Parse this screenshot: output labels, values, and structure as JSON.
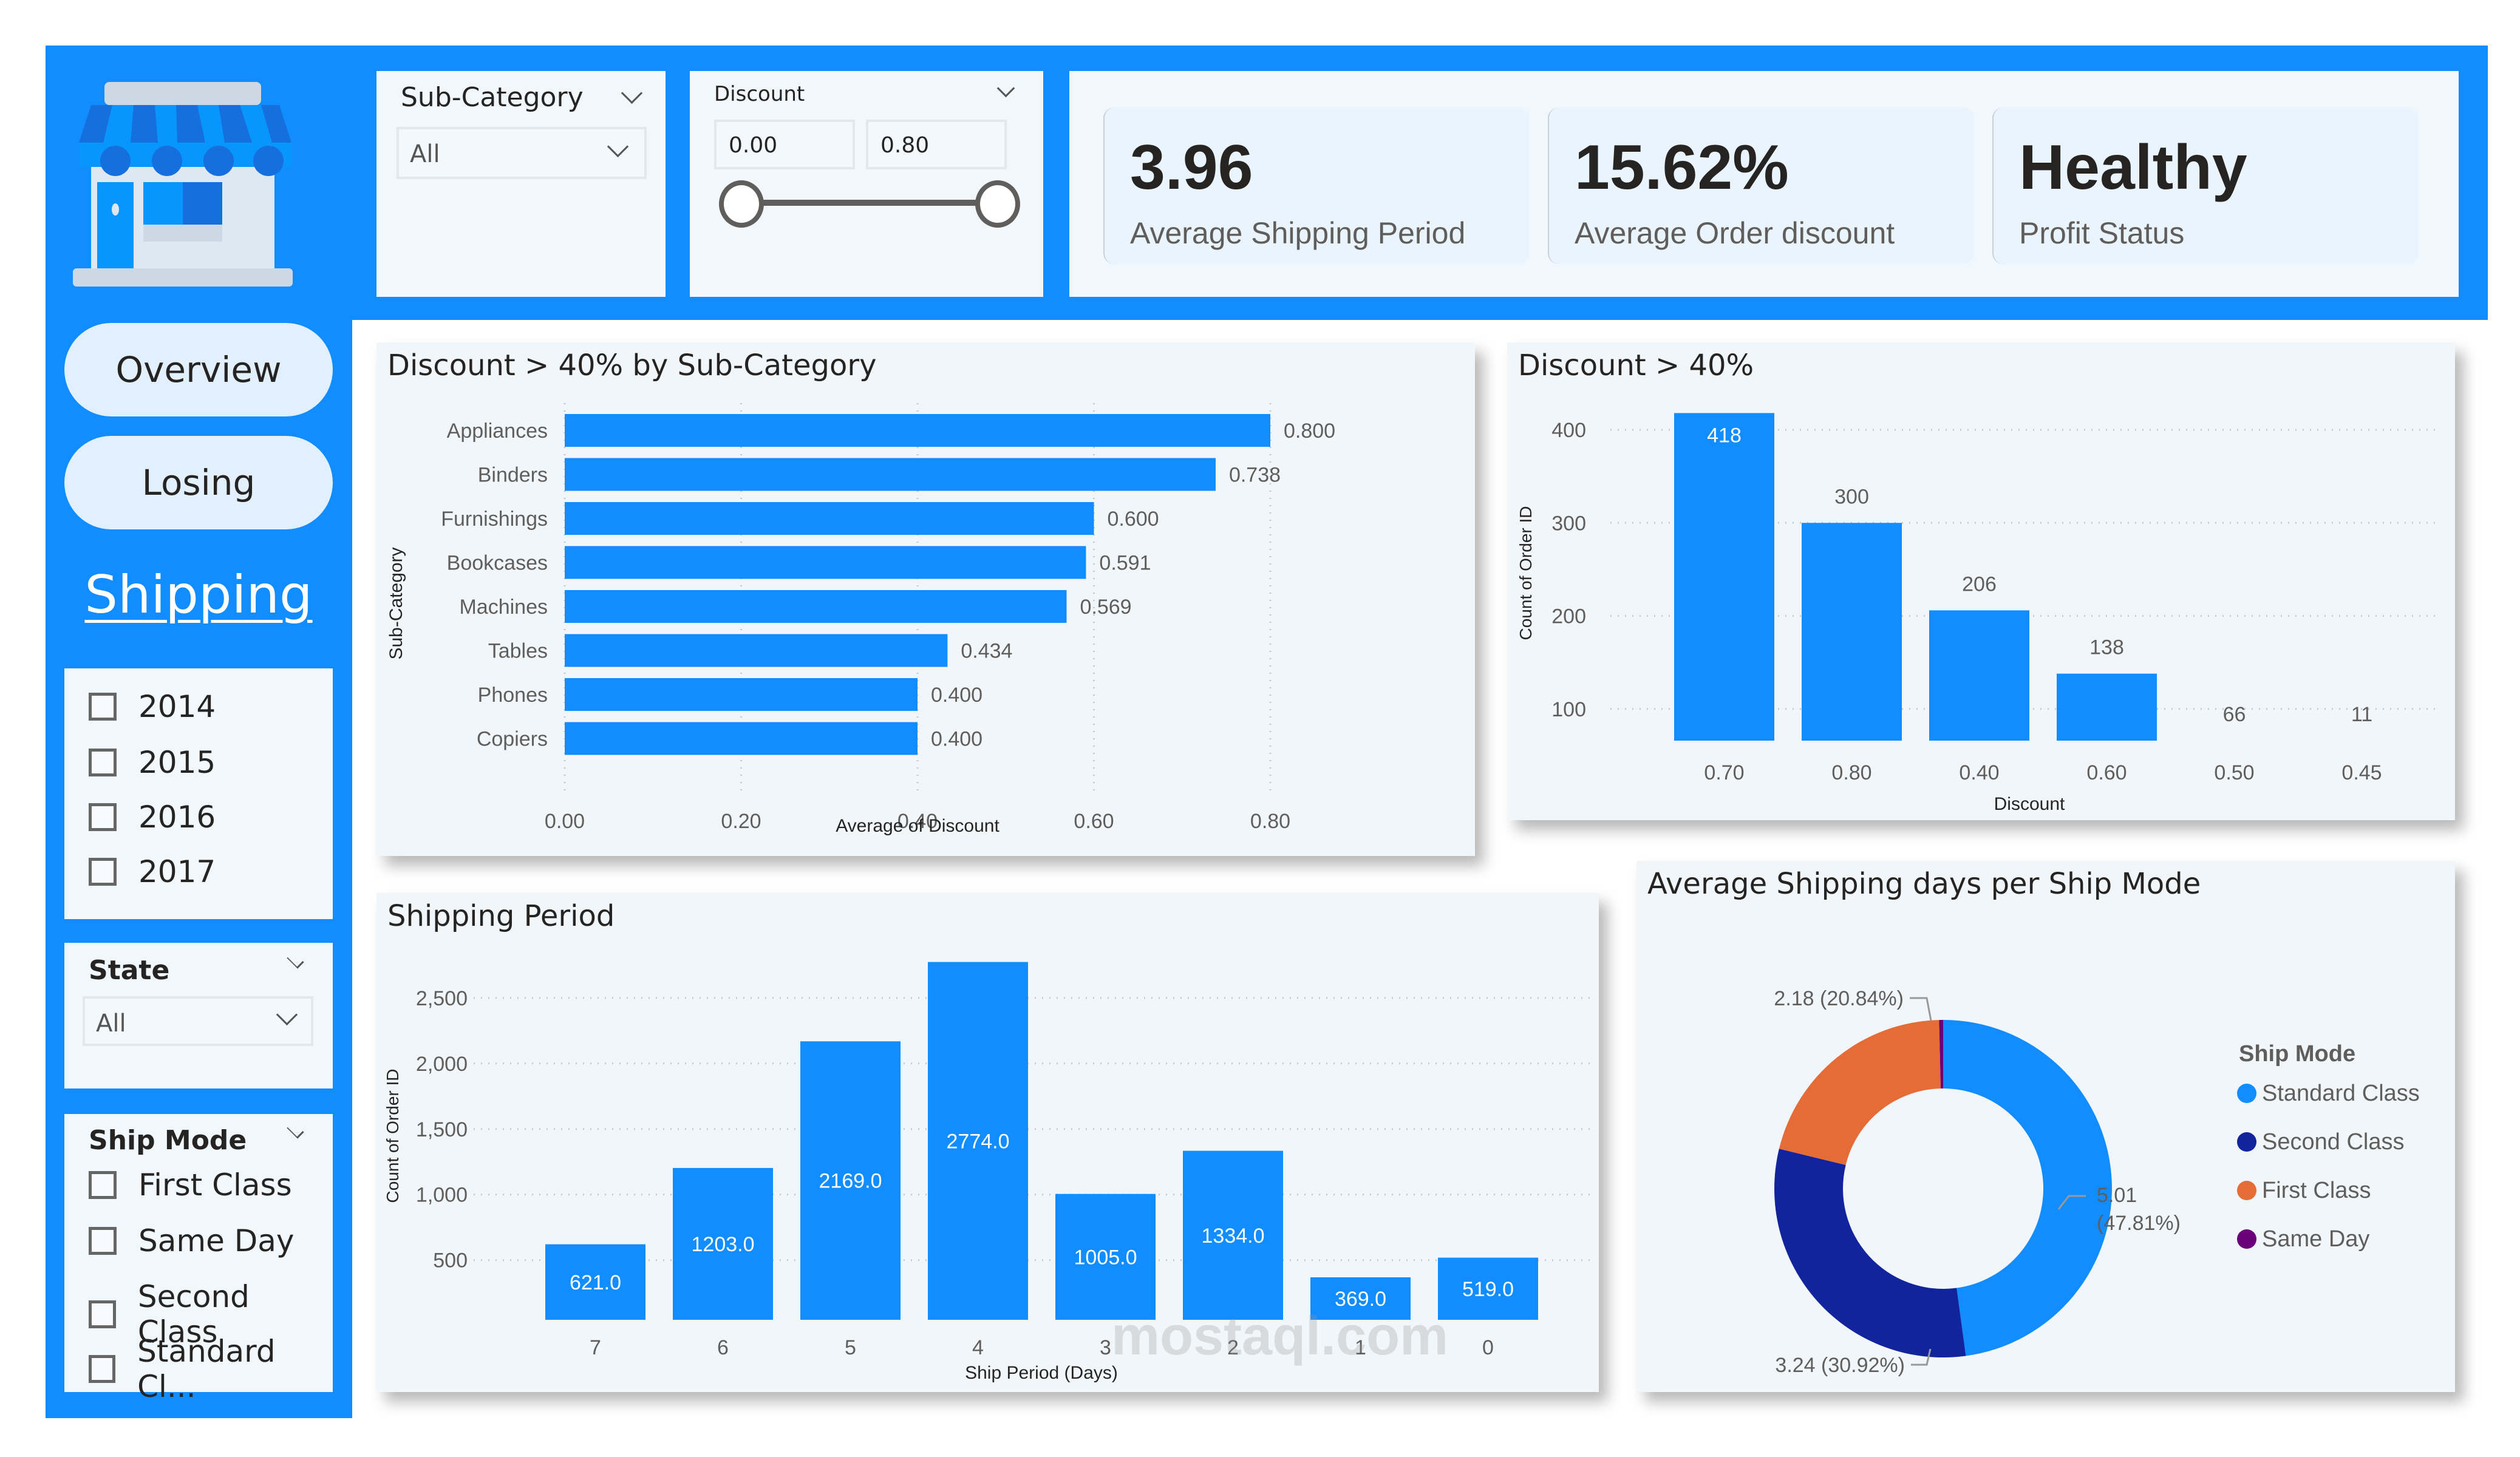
{
  "colors": {
    "brand_blue": "#118dff",
    "dark_blue": "#12239e",
    "orange": "#e66c37",
    "purple": "#6b007b",
    "panel_bg": "#f1f6fa",
    "text": "#252423"
  },
  "logo": {
    "icon": "storefront-icon"
  },
  "filters": {
    "sub_category": {
      "title": "Sub-Category",
      "selected": "All"
    },
    "discount": {
      "title": "Discount",
      "min_value": "0.00",
      "max_value": "0.80",
      "range": [
        0.0,
        0.8
      ]
    }
  },
  "kpis": [
    {
      "value": "3.96",
      "label": "Average Shipping Period"
    },
    {
      "value": "15.62%",
      "label": "Average Order discount"
    },
    {
      "value": "Healthy",
      "label": "Profit Status"
    }
  ],
  "nav": {
    "overview": "Overview",
    "losing": "Losing",
    "shipping": "Shipping"
  },
  "years": [
    "2014",
    "2015",
    "2016",
    "2017"
  ],
  "state_filter": {
    "title": "State",
    "selected": "All"
  },
  "ship_mode_filter": {
    "title": "Ship Mode",
    "options": [
      "First Class",
      "Same Day",
      "Second Class",
      "Standard Cl..."
    ]
  },
  "watermark": "mostaql.com",
  "chart_data": [
    {
      "type": "bar",
      "orientation": "horizontal",
      "title": "Discount > 40% by Sub-Category",
      "xlabel": "Average of Discount",
      "ylabel": "Sub-Category",
      "categories": [
        "Appliances",
        "Binders",
        "Furnishings",
        "Bookcases",
        "Machines",
        "Tables",
        "Phones",
        "Copiers"
      ],
      "values": [
        0.8,
        0.738,
        0.6,
        0.591,
        0.569,
        0.434,
        0.4,
        0.4
      ],
      "labels": [
        "0.800",
        "0.738",
        "0.600",
        "0.591",
        "0.569",
        "0.434",
        "0.400",
        "0.400"
      ],
      "xlim": [
        0,
        0.8
      ],
      "ticks": [
        "0.00",
        "0.20",
        "0.40",
        "0.60",
        "0.80"
      ],
      "tick_values": [
        0,
        0.2,
        0.4,
        0.6,
        0.8
      ],
      "grid": true
    },
    {
      "type": "bar",
      "title": "Discount > 40%",
      "xlabel": "Discount",
      "ylabel": "Count of Order ID",
      "categories": [
        "0.70",
        "0.80",
        "0.40",
        "0.60",
        "0.50",
        "0.45"
      ],
      "values": [
        418,
        300,
        206,
        138,
        66,
        11
      ],
      "ylim": [
        66,
        430
      ],
      "ticks": [
        "100",
        "200",
        "300",
        "400"
      ],
      "tick_values": [
        100,
        200,
        300,
        400
      ],
      "grid": true
    },
    {
      "type": "bar",
      "title": "Shipping Period",
      "xlabel": "Ship Period (Days)",
      "ylabel": "Count of Order ID",
      "categories": [
        "7",
        "6",
        "5",
        "4",
        "3",
        "2",
        "1",
        "0"
      ],
      "values": [
        621,
        1203,
        2169,
        2774,
        1005,
        1334,
        369,
        519
      ],
      "labels": [
        "621.0",
        "1203.0",
        "2169.0",
        "2774.0",
        "1005.0",
        "1334.0",
        "369.0",
        "519.0"
      ],
      "ylim": [
        45,
        2800
      ],
      "ticks": [
        "500",
        "1,000",
        "1,500",
        "2,000",
        "2,500"
      ],
      "tick_values": [
        500,
        1000,
        1500,
        2000,
        2500
      ],
      "grid": true
    },
    {
      "type": "pie",
      "donut": true,
      "title": "Average Shipping days per Ship Mode",
      "legend_title": "Ship Mode",
      "legend_position": "right",
      "slices": [
        {
          "name": "Standard Class",
          "value": 5.01,
          "percent": 47.81,
          "label": "5.01 (47.81%)",
          "color": "#118dff"
        },
        {
          "name": "Second Class",
          "value": 3.24,
          "percent": 30.92,
          "label": "3.24 (30.92%)",
          "color": "#12239e"
        },
        {
          "name": "First Class",
          "value": 2.18,
          "percent": 20.84,
          "label": "2.18 (20.84%)",
          "color": "#e66c37"
        },
        {
          "name": "Same Day",
          "value": 0.04,
          "percent": 0.43,
          "label": "",
          "color": "#6b007b"
        }
      ]
    }
  ]
}
